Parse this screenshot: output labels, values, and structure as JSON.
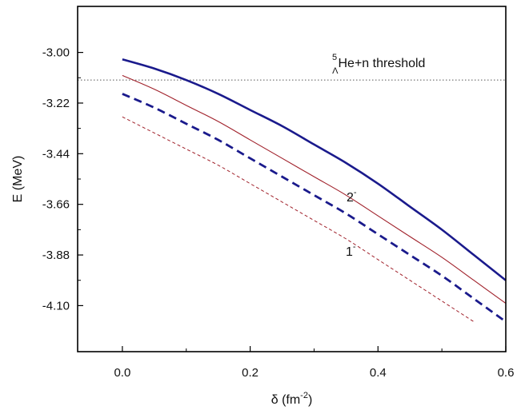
{
  "chart_data": {
    "type": "line",
    "xlabel": "δ (fm⁻²)",
    "ylabel": "E (MeV)",
    "xlim": [
      -0.07,
      0.6
    ],
    "ylim": [
      -4.3,
      -2.8
    ],
    "x_ticks": [
      "0.0",
      "0.2",
      "0.4",
      "0.6"
    ],
    "y_ticks": [
      "-3.00",
      "-3.22",
      "-3.44",
      "-3.66",
      "-3.88",
      "-4.10"
    ],
    "threshold": {
      "y": -3.12,
      "superscript": "5",
      "subscript": "Λ",
      "label": "He+n threshold"
    },
    "annotations": [
      {
        "text": "2",
        "sup": "-"
      },
      {
        "text": "1",
        "sup": "-"
      }
    ],
    "series": [
      {
        "color": "#1a1a8c",
        "style": "solid-thick",
        "x": [
          0.0,
          0.05,
          0.1,
          0.15,
          0.2,
          0.25,
          0.3,
          0.35,
          0.4,
          0.45,
          0.5,
          0.55,
          0.6
        ],
        "y": [
          -3.03,
          -3.07,
          -3.12,
          -3.18,
          -3.25,
          -3.32,
          -3.4,
          -3.48,
          -3.57,
          -3.67,
          -3.77,
          -3.88,
          -3.99
        ]
      },
      {
        "color": "#1a1a8c",
        "style": "dashed-thick",
        "x": [
          0.0,
          0.05,
          0.1,
          0.15,
          0.2,
          0.25,
          0.3,
          0.35,
          0.4,
          0.45,
          0.5,
          0.55,
          0.6
        ],
        "y": [
          -3.18,
          -3.24,
          -3.31,
          -3.38,
          -3.46,
          -3.54,
          -3.62,
          -3.7,
          -3.79,
          -3.88,
          -3.97,
          -4.07,
          -4.17
        ]
      },
      {
        "color": "#a0202a",
        "style": "solid-thin",
        "x": [
          0.0,
          0.05,
          0.1,
          0.15,
          0.2,
          0.25,
          0.3,
          0.35,
          0.4,
          0.45,
          0.5,
          0.55,
          0.6
        ],
        "y": [
          -3.1,
          -3.16,
          -3.23,
          -3.3,
          -3.38,
          -3.46,
          -3.54,
          -3.62,
          -3.71,
          -3.8,
          -3.89,
          -3.99,
          -4.09
        ]
      },
      {
        "color": "#a0202a",
        "style": "dashed-thin",
        "x": [
          0.0,
          0.05,
          0.1,
          0.15,
          0.2,
          0.25,
          0.3,
          0.35,
          0.4,
          0.45,
          0.5,
          0.55
        ],
        "y": [
          -3.28,
          -3.35,
          -3.42,
          -3.49,
          -3.57,
          -3.65,
          -3.73,
          -3.81,
          -3.9,
          -3.99,
          -4.08,
          -4.17
        ]
      }
    ]
  }
}
